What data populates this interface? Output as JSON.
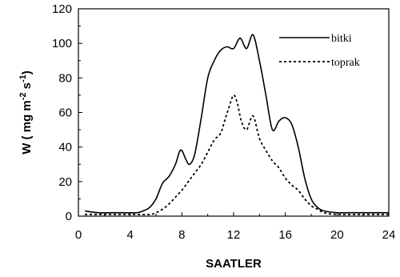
{
  "chart_data": {
    "type": "line",
    "xlabel": "SAATLER",
    "ylabel_parts": [
      "W ( mg m",
      "-2",
      " s",
      "-1",
      ")"
    ],
    "xlim": [
      0,
      24
    ],
    "ylim": [
      0,
      120
    ],
    "xticks": [
      0,
      4,
      8,
      12,
      16,
      20,
      24
    ],
    "yticks": [
      0,
      20,
      40,
      60,
      80,
      100,
      120
    ],
    "grid": false,
    "legend_position": "top-right",
    "series": [
      {
        "name": "bitki",
        "style": "solid",
        "x": [
          0.5,
          1.5,
          2.5,
          3.5,
          4.5,
          5.0,
          5.5,
          6.0,
          6.5,
          7.0,
          7.5,
          7.8,
          8.0,
          8.3,
          8.6,
          9.0,
          9.5,
          10.0,
          10.5,
          11.0,
          11.5,
          12.0,
          12.5,
          13.0,
          13.5,
          14.0,
          14.5,
          15.0,
          15.5,
          16.0,
          16.5,
          17.0,
          17.5,
          18.0,
          18.5,
          19.0,
          20.0,
          21.0,
          22.0,
          23.0,
          24.0
        ],
        "y": [
          3,
          2,
          2,
          2,
          2,
          3,
          5,
          10,
          19,
          23,
          30,
          37,
          38,
          33,
          30,
          36,
          57,
          80,
          90,
          96,
          98,
          97,
          103,
          97,
          105,
          90,
          70,
          50,
          55,
          57,
          53,
          40,
          22,
          10,
          5,
          3,
          2,
          2,
          2,
          2,
          2
        ]
      },
      {
        "name": "toprak",
        "style": "dotted",
        "x": [
          0.5,
          2.0,
          4.0,
          5.5,
          6.0,
          6.5,
          7.0,
          7.5,
          8.0,
          8.5,
          9.0,
          9.5,
          10.0,
          10.5,
          11.0,
          11.3,
          11.6,
          12.0,
          12.3,
          12.6,
          13.0,
          13.5,
          14.0,
          14.5,
          15.0,
          15.5,
          16.0,
          16.5,
          17.0,
          17.5,
          18.0,
          18.5,
          19.0,
          20.0,
          22.0,
          24.0
        ],
        "y": [
          1,
          1,
          1,
          1,
          2,
          4,
          7,
          11,
          15,
          20,
          25,
          30,
          37,
          44,
          48,
          55,
          62,
          70,
          65,
          55,
          50,
          58,
          45,
          38,
          32,
          28,
          22,
          18,
          15,
          10,
          6,
          4,
          2,
          1,
          1,
          1
        ]
      }
    ]
  }
}
